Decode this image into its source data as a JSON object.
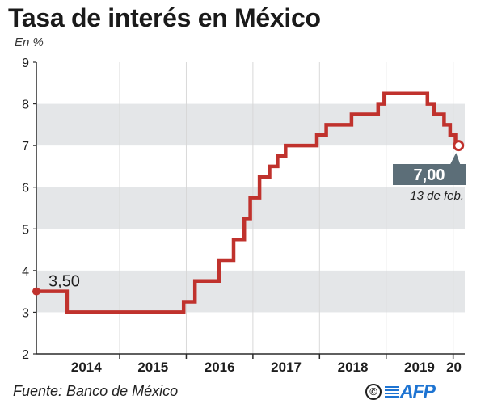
{
  "header": {
    "title": "Tasa de interés en México",
    "unit": "En %"
  },
  "chart_data": {
    "type": "line",
    "step": true,
    "series": [
      {
        "values": [
          [
            2013.75,
            3.5
          ],
          [
            2014.21,
            3.5
          ],
          [
            2014.21,
            3.0
          ],
          [
            2015.96,
            3.0
          ],
          [
            2015.96,
            3.25
          ],
          [
            2016.13,
            3.25
          ],
          [
            2016.13,
            3.75
          ],
          [
            2016.49,
            3.75
          ],
          [
            2016.49,
            4.25
          ],
          [
            2016.71,
            4.25
          ],
          [
            2016.71,
            4.75
          ],
          [
            2016.87,
            4.75
          ],
          [
            2016.87,
            5.25
          ],
          [
            2016.96,
            5.25
          ],
          [
            2016.96,
            5.75
          ],
          [
            2017.1,
            5.75
          ],
          [
            2017.1,
            6.25
          ],
          [
            2017.25,
            6.25
          ],
          [
            2017.25,
            6.5
          ],
          [
            2017.37,
            6.5
          ],
          [
            2017.37,
            6.75
          ],
          [
            2017.49,
            6.75
          ],
          [
            2017.49,
            7.0
          ],
          [
            2017.96,
            7.0
          ],
          [
            2017.96,
            7.25
          ],
          [
            2018.1,
            7.25
          ],
          [
            2018.1,
            7.5
          ],
          [
            2018.48,
            7.5
          ],
          [
            2018.48,
            7.75
          ],
          [
            2018.88,
            7.75
          ],
          [
            2018.88,
            8.0
          ],
          [
            2018.97,
            8.0
          ],
          [
            2018.97,
            8.25
          ],
          [
            2019.62,
            8.25
          ],
          [
            2019.62,
            8.0
          ],
          [
            2019.72,
            8.0
          ],
          [
            2019.72,
            7.75
          ],
          [
            2019.87,
            7.75
          ],
          [
            2019.87,
            7.5
          ],
          [
            2019.96,
            7.5
          ],
          [
            2019.96,
            7.25
          ],
          [
            2020.04,
            7.25
          ],
          [
            2020.04,
            7.0
          ],
          [
            2020.11,
            7.0
          ]
        ]
      }
    ],
    "y_ticks": [
      "2",
      "3",
      "4",
      "5",
      "6",
      "7",
      "8",
      "9"
    ],
    "x_ticks": [
      "2014",
      "2015",
      "2016",
      "2017",
      "2018",
      "2019",
      "20"
    ],
    "ylim": [
      2,
      9
    ],
    "xlim": [
      2013.75,
      2020.18
    ],
    "grid": "alternating horizontal bands",
    "annotations": {
      "start_value": "3,50",
      "end_value": "7,00",
      "end_date": "13 de feb."
    },
    "colors": {
      "line": "#c0322d",
      "band": "#e4e6e8",
      "callout": "#5c6e78",
      "axis": "#2a2a2a",
      "divider": "#d8d8d8"
    }
  },
  "footer": {
    "source": "Fuente: Banco de México",
    "copyright_symbol": "©",
    "agency": "AFP",
    "logo_icon": "afp-logo-icon"
  }
}
